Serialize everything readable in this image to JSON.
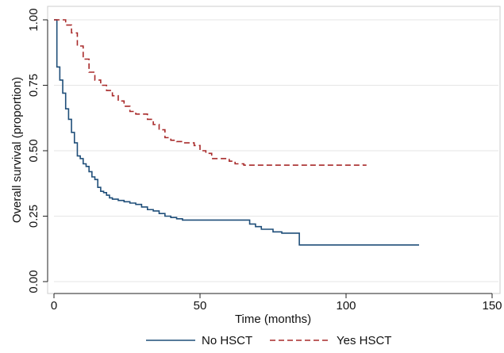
{
  "chart_data": {
    "type": "line",
    "step": true,
    "xlabel": "Time (months)",
    "ylabel": "Overall survival (proportion)",
    "xlim": [
      0,
      150
    ],
    "ylim": [
      0,
      1
    ],
    "x_ticks": [
      0,
      50,
      100,
      150
    ],
    "y_ticks": [
      0,
      0.25,
      0.5,
      0.75,
      1
    ],
    "x_tick_labels": [
      "0",
      "50",
      "100",
      "150"
    ],
    "y_tick_labels": [
      "0.00",
      "0.25",
      "0.50",
      "0.75",
      "1.00"
    ],
    "grid": "horizontal",
    "legend_position": "bottom",
    "series": [
      {
        "name": "No HSCT",
        "color": "#1f4e79",
        "dash": "solid",
        "x": [
          0,
          1,
          2,
          3,
          4,
          5,
          6,
          7,
          8,
          9,
          10,
          11,
          12,
          13,
          14,
          15,
          16,
          17,
          18,
          19,
          20,
          22,
          24,
          26,
          28,
          30,
          32,
          34,
          36,
          38,
          40,
          42,
          44,
          48,
          55,
          60,
          65,
          67,
          69,
          71,
          75,
          78,
          83,
          84,
          90,
          100,
          110,
          125
        ],
        "y": [
          1.0,
          0.82,
          0.77,
          0.72,
          0.66,
          0.62,
          0.57,
          0.53,
          0.48,
          0.47,
          0.45,
          0.44,
          0.42,
          0.4,
          0.39,
          0.36,
          0.345,
          0.34,
          0.33,
          0.32,
          0.315,
          0.31,
          0.305,
          0.3,
          0.295,
          0.285,
          0.275,
          0.27,
          0.26,
          0.25,
          0.245,
          0.24,
          0.235,
          0.235,
          0.235,
          0.235,
          0.235,
          0.22,
          0.21,
          0.2,
          0.19,
          0.185,
          0.185,
          0.14,
          0.14,
          0.14,
          0.14,
          0.14
        ]
      },
      {
        "name": "Yes HSCT",
        "color": "#a82a2a",
        "dash": "dashed",
        "x": [
          0,
          4,
          6,
          8,
          10,
          12,
          14,
          16,
          18,
          20,
          22,
          24,
          26,
          28,
          30,
          32,
          34,
          36,
          38,
          40,
          42,
          44,
          46,
          48,
          50,
          52,
          54,
          56,
          60,
          62,
          65,
          70,
          80,
          90,
          100,
          107
        ],
        "y": [
          1.0,
          0.98,
          0.95,
          0.9,
          0.85,
          0.8,
          0.77,
          0.75,
          0.73,
          0.71,
          0.69,
          0.67,
          0.65,
          0.64,
          0.64,
          0.62,
          0.6,
          0.58,
          0.55,
          0.54,
          0.535,
          0.53,
          0.53,
          0.52,
          0.5,
          0.49,
          0.47,
          0.47,
          0.46,
          0.45,
          0.445,
          0.445,
          0.445,
          0.445,
          0.445,
          0.445
        ]
      }
    ]
  }
}
